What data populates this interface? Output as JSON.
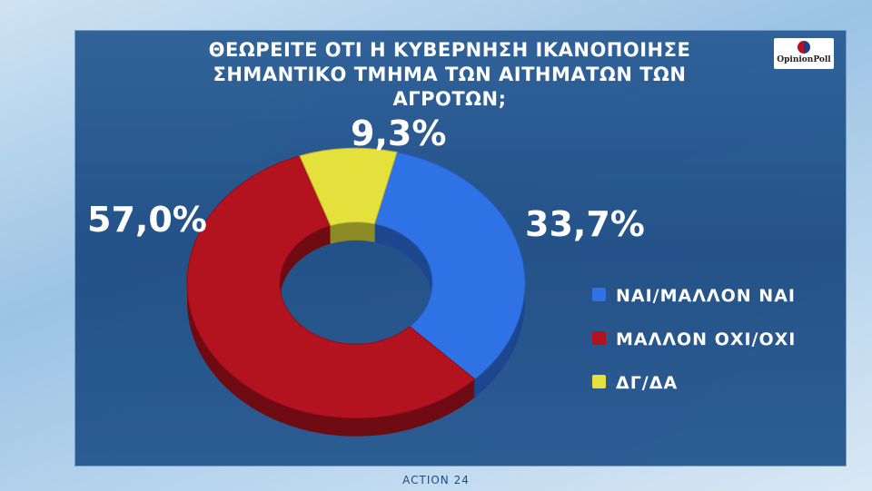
{
  "chart_data": {
    "type": "donut",
    "title": "ΘΕΩΡΕΙΤΕ ΟΤΙ Η ΚΥΒΕΡΝΗΣΗ ΙΚΑΝΟΠΟΙΗΣΕ ΣΗΜΑΝΤΙΚΟ ΤΜΗΜΑ ΤΩΝ ΑΙΤΗΜΑΤΩΝ ΤΩΝ ΑΓΡΟΤΩΝ;",
    "categories": [
      "ΝΑΙ/ΜΑΛΛΟΝ ΝΑΙ",
      "ΜΑΛΛΟΝ ΟΧΙ/ΟΧΙ",
      "ΔΓ/ΔΑ"
    ],
    "values": [
      33.7,
      57.0,
      9.3
    ],
    "value_labels": [
      "33,7%",
      "57,0%",
      "9,3%"
    ],
    "colors": [
      "#2f72e6",
      "#b3121f",
      "#e4e03c"
    ]
  },
  "brand": {
    "poll": "OpinionPoll",
    "channel": "ACTION 24"
  }
}
